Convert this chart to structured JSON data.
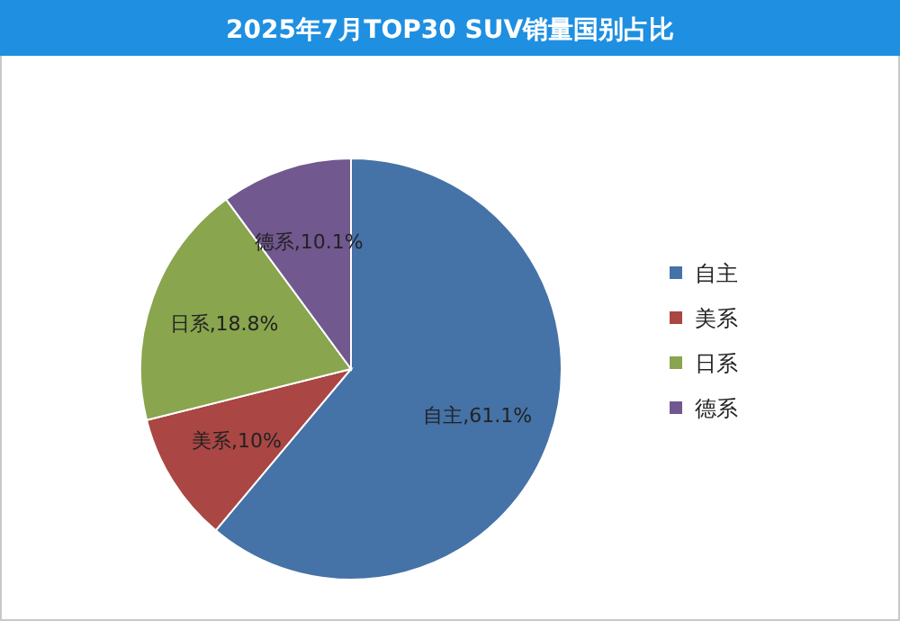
{
  "chart_data": {
    "type": "pie",
    "title": "2025年7月TOP30 SUV销量国别占比",
    "categories": [
      "自主",
      "美系",
      "日系",
      "德系"
    ],
    "values": [
      61.1,
      10,
      18.8,
      10.1
    ],
    "value_labels": [
      ",61.1%",
      ",10%",
      ",18.8%",
      ",10.1%"
    ],
    "colors": [
      "#4572a7",
      "#aa4643",
      "#89a54e",
      "#71588f"
    ],
    "legend": "right"
  }
}
